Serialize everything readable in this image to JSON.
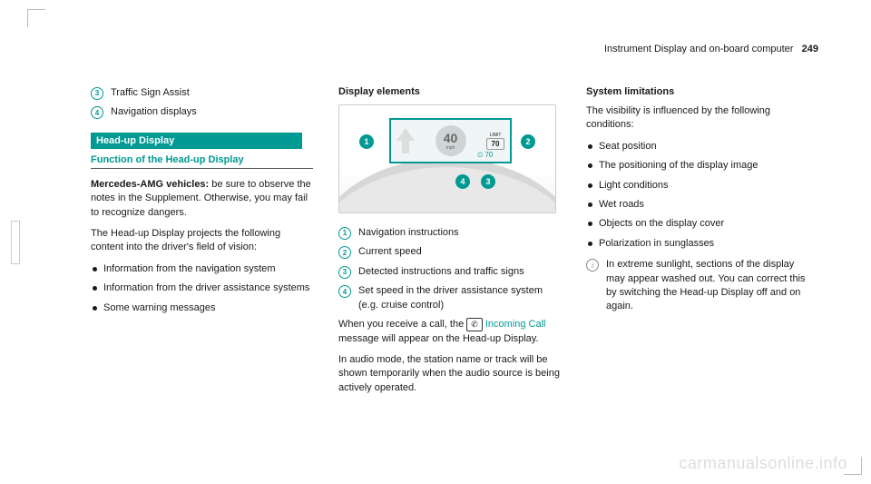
{
  "header": {
    "section": "Instrument Display and on-board computer",
    "page": "249"
  },
  "col1": {
    "items": [
      {
        "n": "3",
        "text": "Traffic Sign Assist"
      },
      {
        "n": "4",
        "text": "Navigation displays"
      }
    ],
    "barTitle": "Head-up Display",
    "subhead": "Function of the Head-up Display",
    "p1a": "Mercedes-AMG vehicles:",
    "p1b": " be sure to observe the notes in the Supplement. Otherwise, you may fail to recognize dangers.",
    "p2": "The Head-up Display projects the following content into the driver's field of vision:",
    "bullets": [
      "Information from the navigation system",
      "Information from the driver assistance systems",
      "Some warning messages"
    ]
  },
  "col2": {
    "head": "Display elements",
    "hud": {
      "speed": "40",
      "mph": "mph",
      "limitLabel": "LIMIT",
      "limit": "70",
      "setIcon": "⏲",
      "setVal": "70"
    },
    "callouts": {
      "c1": "1",
      "c2": "2",
      "c3": "3",
      "c4": "4"
    },
    "items": [
      {
        "n": "1",
        "text": "Navigation instructions"
      },
      {
        "n": "2",
        "text": "Current speed"
      },
      {
        "n": "3",
        "text": "Detected instructions and traffic signs"
      },
      {
        "n": "4",
        "text": "Set speed in the driver assistance system (e.g. cruise control)"
      }
    ],
    "p1a": "When you receive a call, the ",
    "p1phone": "✆",
    "p1link": "Incoming Call",
    "p1b": " message will appear on the Head-up Display.",
    "p2": "In audio mode, the station name or track will be shown temporarily when the audio source is being actively operated."
  },
  "col3": {
    "head": "System limitations",
    "p1": "The visibility is influenced by the following conditions:",
    "bullets": [
      "Seat position",
      "The positioning of the display image",
      "Light conditions",
      "Wet roads",
      "Objects on the display cover",
      "Polarization in sunglasses"
    ],
    "info": "In extreme sunlight, sections of the display may appear washed out. You can correct this by switching the Head-up Display off and on again."
  },
  "watermark": "carmanualsonline.info"
}
